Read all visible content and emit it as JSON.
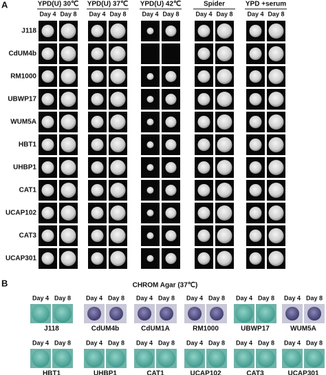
{
  "panel_a": {
    "label": "A",
    "conditions": [
      {
        "title": "YPD(U) 30℃",
        "days": [
          "Day 4",
          "Day 8"
        ]
      },
      {
        "title": "YPD(U) 37℃",
        "days": [
          "Day 4",
          "Day 8"
        ]
      },
      {
        "title": "YPD(U) 42℃",
        "days": [
          "Day 4",
          "Day 8"
        ]
      },
      {
        "title": "Spider",
        "days": [
          "Day 4",
          "Day 8"
        ]
      },
      {
        "title": "YPD +serum",
        "days": [
          "Day 4",
          "Day 8"
        ]
      }
    ],
    "strains": [
      "J118",
      "CdUM4b",
      "RM1000",
      "UBWP17",
      "WUM5A",
      "HBT1",
      "UHBP1",
      "CAT1",
      "UCAP102",
      "CAT3",
      "UCAP301"
    ]
  },
  "panel_b": {
    "label": "B",
    "title": "CHROM Agar (37℃)",
    "groups": [
      {
        "strain": "J118",
        "days": [
          "Day 4",
          "Day 8"
        ]
      },
      {
        "strain": "CdUM4b",
        "days": [
          "Day 4",
          "Day 8"
        ]
      },
      {
        "strain": "CdUM1A",
        "days": [
          "Day 4",
          "Day 8"
        ]
      },
      {
        "strain": "RM1000",
        "days": [
          "Day 4",
          "Day 8"
        ]
      },
      {
        "strain": "UBWP17",
        "days": [
          "Day 4",
          "Day 8"
        ]
      },
      {
        "strain": "WUM5A",
        "days": [
          "Day 4",
          "Day 8"
        ]
      },
      {
        "strain": "HBT1",
        "days": [
          "Day 4",
          "Day 8"
        ]
      },
      {
        "strain": "UHBP1",
        "days": [
          "Day 4",
          "Day 8"
        ]
      },
      {
        "strain": "CAT1",
        "days": [
          "Day 4",
          "Day 8"
        ]
      },
      {
        "strain": "UCAP102",
        "days": [
          "Day 4",
          "Day 8"
        ]
      },
      {
        "strain": "CAT3",
        "days": [
          "Day 4",
          "Day 8"
        ]
      },
      {
        "strain": "UCAP301",
        "days": [
          "Day 4",
          "Day 8"
        ]
      }
    ]
  }
}
